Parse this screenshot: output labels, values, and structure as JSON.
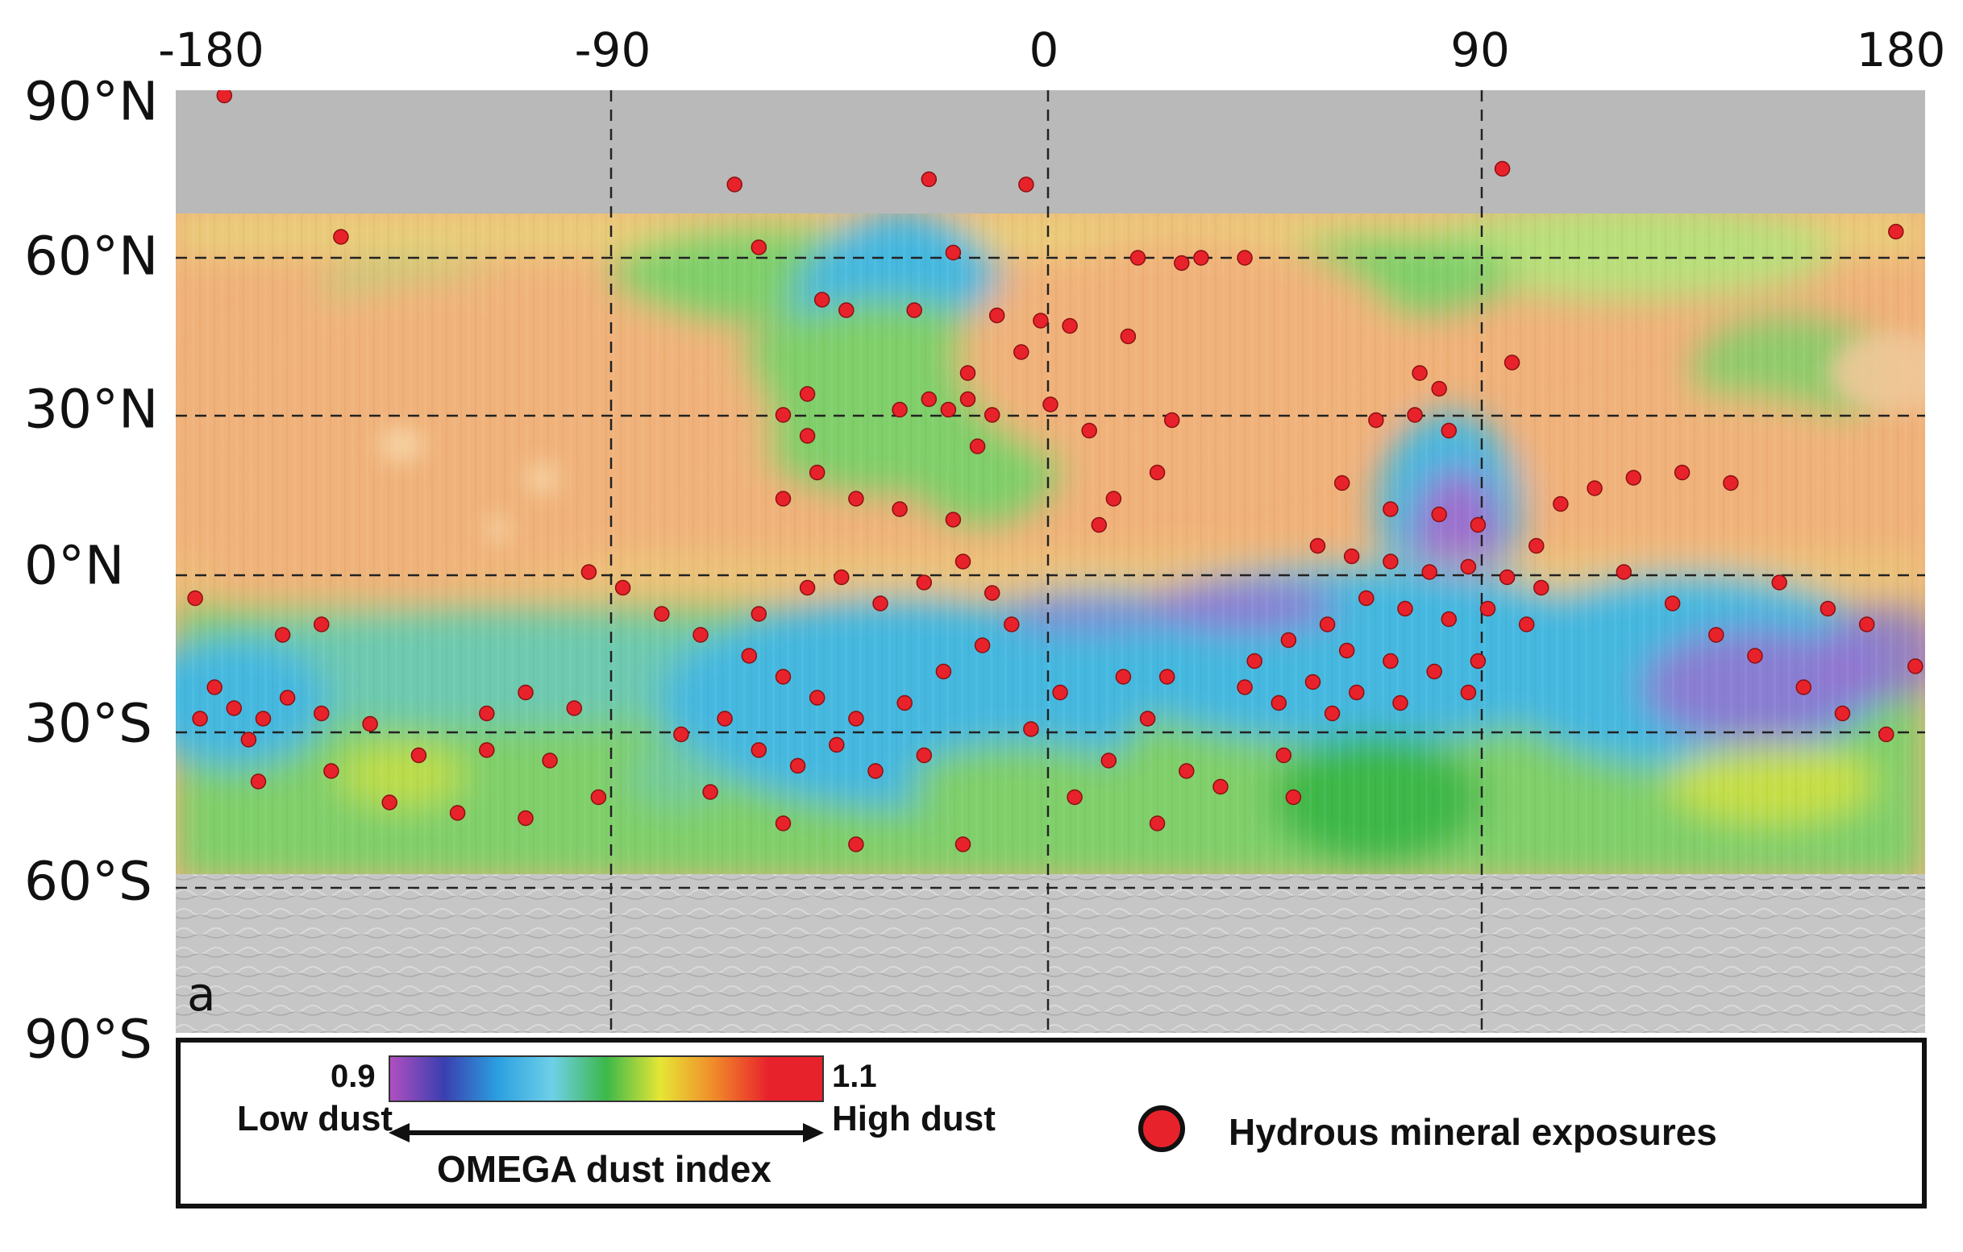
{
  "axes": {
    "lon_ticks": [
      "-180",
      "-90",
      "0",
      "90",
      "180"
    ],
    "lon_values": [
      -180,
      -90,
      0,
      90,
      180
    ],
    "lat_ticks": [
      "90°N",
      "60°N",
      "30°N",
      "0°N",
      "30°S",
      "60°S",
      "90°S"
    ],
    "lat_values": [
      90,
      60,
      30,
      0,
      -30,
      -60,
      -90
    ]
  },
  "panel_label": "a",
  "legend": {
    "colorbar_min": "0.9",
    "colorbar_max": "1.1",
    "low_label": "Low dust",
    "high_label": "High dust",
    "index_title": "OMEGA dust index",
    "symbol_label": "Hydrous mineral exposures"
  },
  "colors": {
    "polar_cap": "#b9b9b9",
    "south_cap": "#c8c8c8",
    "high_dust": "#f0b27a",
    "mid_dust": "#7fcf6a",
    "low_dust": "#44b8e0",
    "lowest_dust": "#9b6fd0",
    "mineral_dot": "#e8222b",
    "colorbar": [
      "#b04fc0",
      "#3a3fb0",
      "#2ba0e0",
      "#6fd0e8",
      "#3cb84a",
      "#e6e635",
      "#f08a2a",
      "#e8222b",
      "#e8222b"
    ]
  },
  "map_data": {
    "regions": [
      {
        "name": "north-polar-gray",
        "lat_range": [
          68,
          90
        ],
        "level": "no-data"
      },
      {
        "name": "south-polar-gray",
        "lat_range": [
          -90,
          -57
        ],
        "level": "no-data"
      },
      {
        "name": "northern-plains",
        "lat_range": [
          10,
          68
        ],
        "level": "high"
      },
      {
        "name": "southern-highlands",
        "lat_range": [
          -57,
          -5
        ],
        "level": "low"
      }
    ],
    "hydrous_exposures": [
      {
        "lon": -170,
        "lat": 89
      },
      {
        "lon": -146,
        "lat": 62
      },
      {
        "lon": -65,
        "lat": 72
      },
      {
        "lon": -25,
        "lat": 73
      },
      {
        "lon": -5,
        "lat": 72
      },
      {
        "lon": 93,
        "lat": 75
      },
      {
        "lon": 174,
        "lat": 63
      },
      {
        "lon": -60,
        "lat": 60
      },
      {
        "lon": -20,
        "lat": 59
      },
      {
        "lon": 27,
        "lat": 57
      },
      {
        "lon": 31,
        "lat": 58
      },
      {
        "lon": 40,
        "lat": 58
      },
      {
        "lon": 18,
        "lat": 58
      },
      {
        "lon": -47,
        "lat": 50
      },
      {
        "lon": -42,
        "lat": 48
      },
      {
        "lon": -28,
        "lat": 48
      },
      {
        "lon": -11,
        "lat": 47
      },
      {
        "lon": -2,
        "lat": 46
      },
      {
        "lon": 4,
        "lat": 45
      },
      {
        "lon": -6,
        "lat": 40
      },
      {
        "lon": 16,
        "lat": 43
      },
      {
        "lon": -17,
        "lat": 36
      },
      {
        "lon": -25,
        "lat": 31
      },
      {
        "lon": -17,
        "lat": 31
      },
      {
        "lon": -21,
        "lat": 29
      },
      {
        "lon": -31,
        "lat": 29
      },
      {
        "lon": -12,
        "lat": 28
      },
      {
        "lon": -50,
        "lat": 32
      },
      {
        "lon": -55,
        "lat": 28
      },
      {
        "lon": -50,
        "lat": 24
      },
      {
        "lon": -15,
        "lat": 22
      },
      {
        "lon": 0,
        "lat": 30
      },
      {
        "lon": 8,
        "lat": 25
      },
      {
        "lon": 25,
        "lat": 27
      },
      {
        "lon": 22,
        "lat": 17
      },
      {
        "lon": 13,
        "lat": 12
      },
      {
        "lon": 10,
        "lat": 7
      },
      {
        "lon": -48,
        "lat": 17
      },
      {
        "lon": -40,
        "lat": 12
      },
      {
        "lon": -31,
        "lat": 10
      },
      {
        "lon": -20,
        "lat": 8
      },
      {
        "lon": -55,
        "lat": 12
      },
      {
        "lon": 76,
        "lat": 36
      },
      {
        "lon": 80,
        "lat": 33
      },
      {
        "lon": 75,
        "lat": 28
      },
      {
        "lon": 67,
        "lat": 27
      },
      {
        "lon": 82,
        "lat": 25
      },
      {
        "lon": 95,
        "lat": 38
      },
      {
        "lon": 60,
        "lat": 15
      },
      {
        "lon": 70,
        "lat": 10
      },
      {
        "lon": 80,
        "lat": 9
      },
      {
        "lon": 88,
        "lat": 7
      },
      {
        "lon": 55,
        "lat": 3
      },
      {
        "lon": 62,
        "lat": 1
      },
      {
        "lon": 70,
        "lat": 0
      },
      {
        "lon": 78,
        "lat": -2
      },
      {
        "lon": 86,
        "lat": -1
      },
      {
        "lon": 94,
        "lat": -3
      },
      {
        "lon": 101,
        "lat": -5
      },
      {
        "lon": 65,
        "lat": -7
      },
      {
        "lon": 73,
        "lat": -9
      },
      {
        "lon": 82,
        "lat": -11
      },
      {
        "lon": 90,
        "lat": -9
      },
      {
        "lon": 98,
        "lat": -12
      },
      {
        "lon": 57,
        "lat": -12
      },
      {
        "lon": 49,
        "lat": -15
      },
      {
        "lon": 61,
        "lat": -17
      },
      {
        "lon": 70,
        "lat": -19
      },
      {
        "lon": 79,
        "lat": -21
      },
      {
        "lon": 88,
        "lat": -19
      },
      {
        "lon": 42,
        "lat": -19
      },
      {
        "lon": 54,
        "lat": -23
      },
      {
        "lon": 63,
        "lat": -25
      },
      {
        "lon": 72,
        "lat": -27
      },
      {
        "lon": 86,
        "lat": -25
      },
      {
        "lon": 40,
        "lat": -24
      },
      {
        "lon": 47,
        "lat": -27
      },
      {
        "lon": 58,
        "lat": -29
      },
      {
        "lon": 105,
        "lat": 11
      },
      {
        "lon": 112,
        "lat": 14
      },
      {
        "lon": 120,
        "lat": 16
      },
      {
        "lon": 130,
        "lat": 17
      },
      {
        "lon": 140,
        "lat": 15
      },
      {
        "lon": 100,
        "lat": 3
      },
      {
        "lon": 118,
        "lat": -2
      },
      {
        "lon": 128,
        "lat": -8
      },
      {
        "lon": 137,
        "lat": -14
      },
      {
        "lon": 145,
        "lat": -18
      },
      {
        "lon": 155,
        "lat": -24
      },
      {
        "lon": 163,
        "lat": -29
      },
      {
        "lon": 172,
        "lat": -33
      },
      {
        "lon": 178,
        "lat": -20
      },
      {
        "lon": 160,
        "lat": -9
      },
      {
        "lon": 150,
        "lat": -4
      },
      {
        "lon": 168,
        "lat": -12
      },
      {
        "lon": -172,
        "lat": -24
      },
      {
        "lon": -168,
        "lat": -28
      },
      {
        "lon": -162,
        "lat": -30
      },
      {
        "lon": -157,
        "lat": -26
      },
      {
        "lon": -175,
        "lat": -30
      },
      {
        "lon": -165,
        "lat": -34
      },
      {
        "lon": -150,
        "lat": -29
      },
      {
        "lon": -140,
        "lat": -31
      },
      {
        "lon": -150,
        "lat": -12
      },
      {
        "lon": -158,
        "lat": -14
      },
      {
        "lon": -176,
        "lat": -7
      },
      {
        "lon": -163,
        "lat": -42
      },
      {
        "lon": -148,
        "lat": -40
      },
      {
        "lon": -130,
        "lat": -37
      },
      {
        "lon": -116,
        "lat": -36
      },
      {
        "lon": -103,
        "lat": -38
      },
      {
        "lon": -93,
        "lat": -45
      },
      {
        "lon": -122,
        "lat": -48
      },
      {
        "lon": -108,
        "lat": -49
      },
      {
        "lon": -136,
        "lat": -46
      },
      {
        "lon": -98,
        "lat": -28
      },
      {
        "lon": -108,
        "lat": -25
      },
      {
        "lon": -116,
        "lat": -29
      },
      {
        "lon": -88,
        "lat": -5
      },
      {
        "lon": -95,
        "lat": -2
      },
      {
        "lon": -80,
        "lat": -10
      },
      {
        "lon": -72,
        "lat": -14
      },
      {
        "lon": -62,
        "lat": -18
      },
      {
        "lon": -55,
        "lat": -22
      },
      {
        "lon": -48,
        "lat": -26
      },
      {
        "lon": -40,
        "lat": -30
      },
      {
        "lon": -30,
        "lat": -27
      },
      {
        "lon": -22,
        "lat": -21
      },
      {
        "lon": -14,
        "lat": -16
      },
      {
        "lon": -8,
        "lat": -12
      },
      {
        "lon": -50,
        "lat": -5
      },
      {
        "lon": -43,
        "lat": -3
      },
      {
        "lon": -35,
        "lat": -8
      },
      {
        "lon": -26,
        "lat": -4
      },
      {
        "lon": -18,
        "lat": 0
      },
      {
        "lon": -12,
        "lat": -6
      },
      {
        "lon": -60,
        "lat": -10
      },
      {
        "lon": -67,
        "lat": -30
      },
      {
        "lon": -60,
        "lat": -36
      },
      {
        "lon": -52,
        "lat": -39
      },
      {
        "lon": -44,
        "lat": -35
      },
      {
        "lon": -36,
        "lat": -40
      },
      {
        "lon": -26,
        "lat": -37
      },
      {
        "lon": -76,
        "lat": -33
      },
      {
        "lon": -70,
        "lat": -44
      },
      {
        "lon": -55,
        "lat": -50
      },
      {
        "lon": -40,
        "lat": -54
      },
      {
        "lon": -18,
        "lat": -54
      },
      {
        "lon": 5,
        "lat": -45
      },
      {
        "lon": 12,
        "lat": -38
      },
      {
        "lon": 20,
        "lat": -30
      },
      {
        "lon": 24,
        "lat": -22
      },
      {
        "lon": 15,
        "lat": -22
      },
      {
        "lon": 2,
        "lat": -25
      },
      {
        "lon": -4,
        "lat": -32
      },
      {
        "lon": 28,
        "lat": -40
      },
      {
        "lon": 22,
        "lat": -50
      },
      {
        "lon": 35,
        "lat": -43
      },
      {
        "lon": 48,
        "lat": -37
      },
      {
        "lon": 50,
        "lat": -45
      }
    ]
  }
}
